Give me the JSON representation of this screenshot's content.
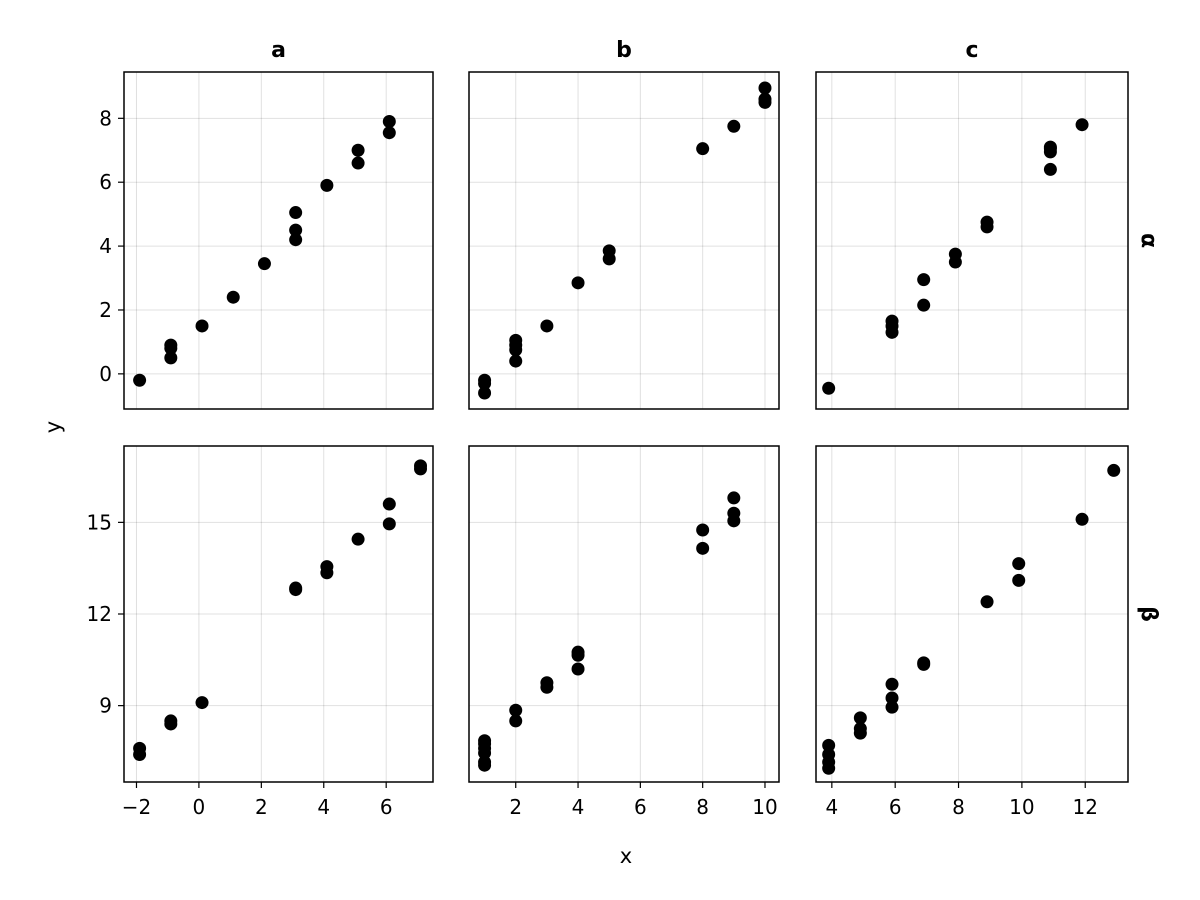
{
  "chart_data": {
    "type": "scatter",
    "xlabel": "x",
    "ylabel": "y",
    "column_titles": [
      "a",
      "b",
      "c"
    ],
    "row_titles": [
      "α",
      "β"
    ],
    "grid": true,
    "columns": [
      {
        "title": "a",
        "xlim": [
          -2.4,
          7.5
        ],
        "xticks": [
          -2,
          0,
          2,
          4,
          6
        ]
      },
      {
        "title": "b",
        "xlim": [
          0.5,
          10.45
        ],
        "xticks": [
          2,
          4,
          6,
          8,
          10
        ]
      },
      {
        "title": "c",
        "xlim": [
          3.5,
          13.35
        ],
        "xticks": [
          4,
          6,
          8,
          10,
          12
        ]
      }
    ],
    "rows": [
      {
        "title": "α",
        "ylim": [
          -1.1,
          9.45
        ],
        "yticks": [
          0,
          2,
          4,
          6,
          8
        ]
      },
      {
        "title": "β",
        "ylim": [
          6.5,
          17.5
        ],
        "yticks": [
          9,
          12,
          15
        ]
      }
    ],
    "panels": [
      {
        "row": "α",
        "col": "a",
        "points": [
          [
            -1.9,
            -0.2
          ],
          [
            -0.9,
            0.5
          ],
          [
            -0.9,
            0.8
          ],
          [
            -0.9,
            0.9
          ],
          [
            0.1,
            1.5
          ],
          [
            1.1,
            2.4
          ],
          [
            2.1,
            3.45
          ],
          [
            3.1,
            4.2
          ],
          [
            3.1,
            4.5
          ],
          [
            3.1,
            5.05
          ],
          [
            4.1,
            5.9
          ],
          [
            5.1,
            6.6
          ],
          [
            5.1,
            7.0
          ],
          [
            6.1,
            7.55
          ],
          [
            6.1,
            7.9
          ]
        ]
      },
      {
        "row": "α",
        "col": "b",
        "points": [
          [
            1.0,
            -0.6
          ],
          [
            1.0,
            -0.3
          ],
          [
            1.0,
            -0.2
          ],
          [
            2.0,
            0.4
          ],
          [
            2.0,
            0.75
          ],
          [
            2.0,
            0.9
          ],
          [
            2.0,
            1.05
          ],
          [
            3.0,
            1.5
          ],
          [
            4.0,
            2.85
          ],
          [
            5.0,
            3.6
          ],
          [
            5.0,
            3.85
          ],
          [
            8.0,
            7.05
          ],
          [
            9.0,
            7.75
          ],
          [
            10.0,
            8.5
          ],
          [
            10.0,
            8.6
          ],
          [
            10.0,
            8.95
          ]
        ]
      },
      {
        "row": "α",
        "col": "c",
        "points": [
          [
            3.9,
            -0.45
          ],
          [
            5.9,
            1.3
          ],
          [
            5.9,
            1.5
          ],
          [
            5.9,
            1.65
          ],
          [
            6.9,
            2.15
          ],
          [
            6.9,
            2.95
          ],
          [
            7.9,
            3.5
          ],
          [
            7.9,
            3.75
          ],
          [
            8.9,
            4.6
          ],
          [
            8.9,
            4.75
          ],
          [
            10.9,
            6.4
          ],
          [
            10.9,
            6.95
          ],
          [
            10.9,
            7.05
          ],
          [
            10.9,
            7.1
          ],
          [
            11.9,
            7.8
          ]
        ]
      },
      {
        "row": "β",
        "col": "a",
        "points": [
          [
            -1.9,
            7.4
          ],
          [
            -1.9,
            7.6
          ],
          [
            -0.9,
            8.4
          ],
          [
            -0.9,
            8.5
          ],
          [
            0.1,
            9.1
          ],
          [
            3.1,
            12.8
          ],
          [
            3.1,
            12.85
          ],
          [
            4.1,
            13.35
          ],
          [
            4.1,
            13.55
          ],
          [
            5.1,
            14.45
          ],
          [
            6.1,
            14.95
          ],
          [
            6.1,
            15.6
          ],
          [
            7.1,
            16.75
          ],
          [
            7.1,
            16.85
          ]
        ]
      },
      {
        "row": "β",
        "col": "b",
        "points": [
          [
            1.0,
            7.05
          ],
          [
            1.0,
            7.15
          ],
          [
            1.0,
            7.45
          ],
          [
            1.0,
            7.6
          ],
          [
            1.0,
            7.75
          ],
          [
            1.0,
            7.85
          ],
          [
            2.0,
            8.5
          ],
          [
            2.0,
            8.85
          ],
          [
            3.0,
            9.6
          ],
          [
            3.0,
            9.75
          ],
          [
            4.0,
            10.2
          ],
          [
            4.0,
            10.65
          ],
          [
            4.0,
            10.75
          ],
          [
            8.0,
            14.15
          ],
          [
            8.0,
            14.75
          ],
          [
            9.0,
            15.05
          ],
          [
            9.0,
            15.3
          ],
          [
            9.0,
            15.8
          ]
        ]
      },
      {
        "row": "β",
        "col": "c",
        "points": [
          [
            3.9,
            6.95
          ],
          [
            3.9,
            7.15
          ],
          [
            3.9,
            7.4
          ],
          [
            3.9,
            7.7
          ],
          [
            4.9,
            8.1
          ],
          [
            4.9,
            8.25
          ],
          [
            4.9,
            8.6
          ],
          [
            5.9,
            8.95
          ],
          [
            5.9,
            9.25
          ],
          [
            5.9,
            9.7
          ],
          [
            6.9,
            10.35
          ],
          [
            6.9,
            10.4
          ],
          [
            8.9,
            12.4
          ],
          [
            9.9,
            13.1
          ],
          [
            9.9,
            13.65
          ],
          [
            11.9,
            15.1
          ],
          [
            12.9,
            16.7
          ]
        ]
      }
    ]
  }
}
